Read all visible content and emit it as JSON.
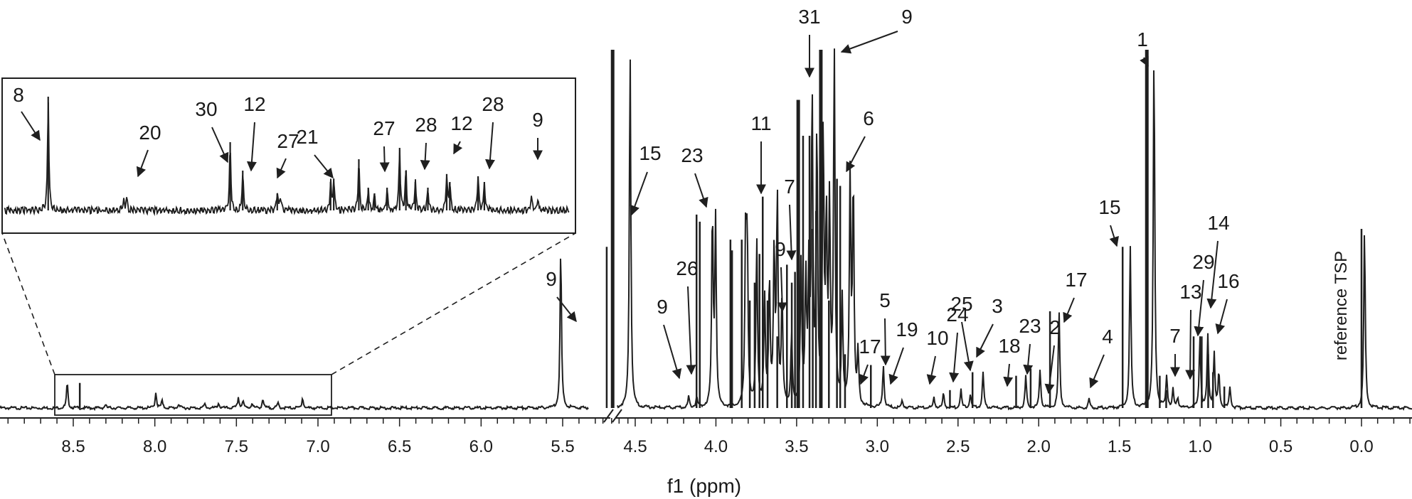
{
  "chart_data": {
    "type": "line",
    "xlabel": "f1 (ppm)",
    "reversed_x_axis": true,
    "axis_break": [
      4.7,
      5.2
    ],
    "tick_labels": [
      "8.5",
      "8.0",
      "7.5",
      "7.0",
      "6.5",
      "6.0",
      "5.5",
      "4.5",
      "4.0",
      "3.5",
      "3.0",
      "2.5",
      "2.0",
      "1.5",
      "1.0",
      "0.5",
      "0.0"
    ],
    "reference_label": "reference TSP",
    "colors": {
      "trace": "#1f1f1f",
      "text": "#1a1a1a"
    },
    "series": [
      {
        "name": "",
        "peaks": [
          {
            "x": 8.46,
            "y": 0.07
          },
          {
            "x": 8.21,
            "y": 0.01
          },
          {
            "x": 7.88,
            "y": 0.045
          },
          {
            "x": 7.84,
            "y": 0.02
          },
          {
            "x": 7.73,
            "y": 0.012
          },
          {
            "x": 7.56,
            "y": 0.012
          },
          {
            "x": 7.47,
            "y": 0.015
          },
          {
            "x": 7.34,
            "y": 0.03
          },
          {
            "x": 7.31,
            "y": 0.02
          },
          {
            "x": 7.25,
            "y": 0.015
          },
          {
            "x": 7.18,
            "y": 0.025
          },
          {
            "x": 7.08,
            "y": 0.015
          },
          {
            "x": 6.92,
            "y": 0.03
          },
          {
            "x": 5.23,
            "y": 0.45
          },
          {
            "x": 4.64,
            "y": 1.0
          },
          {
            "x": 4.27,
            "y": 0.03
          },
          {
            "x": 4.22,
            "y": 0.03
          },
          {
            "x": 4.12,
            "y": 0.54
          },
          {
            "x": 4.1,
            "y": 0.52
          },
          {
            "x": 3.91,
            "y": 0.47
          },
          {
            "x": 3.9,
            "y": 0.44
          },
          {
            "x": 3.84,
            "y": 0.47
          },
          {
            "x": 3.79,
            "y": 0.3
          },
          {
            "x": 3.76,
            "y": 0.35
          },
          {
            "x": 3.73,
            "y": 0.43
          },
          {
            "x": 3.71,
            "y": 0.59
          },
          {
            "x": 3.68,
            "y": 0.3
          },
          {
            "x": 3.62,
            "y": 0.2
          },
          {
            "x": 3.56,
            "y": 0.4
          },
          {
            "x": 3.53,
            "y": 0.35
          },
          {
            "x": 3.51,
            "y": 0.38
          },
          {
            "x": 3.49,
            "y": 0.86
          },
          {
            "x": 3.46,
            "y": 0.76
          },
          {
            "x": 3.42,
            "y": 0.76
          },
          {
            "x": 3.4,
            "y": 0.5
          },
          {
            "x": 3.38,
            "y": 0.55
          },
          {
            "x": 3.35,
            "y": 1.0
          },
          {
            "x": 3.3,
            "y": 0.3
          },
          {
            "x": 3.25,
            "y": 0.64
          },
          {
            "x": 3.23,
            "y": 0.62
          },
          {
            "x": 3.2,
            "y": 0.15
          },
          {
            "x": 3.04,
            "y": 0.12
          },
          {
            "x": 2.92,
            "y": 0.02
          },
          {
            "x": 2.72,
            "y": 0.03
          },
          {
            "x": 2.66,
            "y": 0.04
          },
          {
            "x": 2.55,
            "y": 0.05
          },
          {
            "x": 2.49,
            "y": 0.04
          },
          {
            "x": 2.41,
            "y": 0.1
          },
          {
            "x": 2.14,
            "y": 0.09
          },
          {
            "x": 2.05,
            "y": 0.11
          },
          {
            "x": 1.93,
            "y": 0.27
          },
          {
            "x": 1.74,
            "y": 0.025
          },
          {
            "x": 1.48,
            "y": 0.45
          },
          {
            "x": 1.33,
            "y": 1.0
          },
          {
            "x": 1.25,
            "y": 0.09
          },
          {
            "x": 1.21,
            "y": 0.05
          },
          {
            "x": 1.18,
            "y": 0.03
          },
          {
            "x": 1.04,
            "y": 0.2
          },
          {
            "x": 0.99,
            "y": 0.2
          },
          {
            "x": 0.95,
            "y": 0.15
          },
          {
            "x": 0.92,
            "y": 0.1
          },
          {
            "x": 0.85,
            "y": 0.06
          },
          {
            "x": 0.0,
            "y": 0.5
          }
        ]
      }
    ],
    "inset": {
      "x_range": [
        8.6,
        6.8
      ],
      "peaks": [
        {
          "x": 8.46,
          "y": 1.0
        },
        {
          "x": 8.22,
          "y": 0.1
        },
        {
          "x": 8.21,
          "y": 0.12
        },
        {
          "x": 7.88,
          "y": 0.6
        },
        {
          "x": 7.84,
          "y": 0.35
        },
        {
          "x": 7.73,
          "y": 0.15
        },
        {
          "x": 7.72,
          "y": 0.12
        },
        {
          "x": 7.56,
          "y": 0.25
        },
        {
          "x": 7.55,
          "y": 0.28
        },
        {
          "x": 7.47,
          "y": 0.45
        },
        {
          "x": 7.44,
          "y": 0.2
        },
        {
          "x": 7.42,
          "y": 0.15
        },
        {
          "x": 7.38,
          "y": 0.2
        },
        {
          "x": 7.34,
          "y": 0.55
        },
        {
          "x": 7.32,
          "y": 0.35
        },
        {
          "x": 7.29,
          "y": 0.25
        },
        {
          "x": 7.25,
          "y": 0.2
        },
        {
          "x": 7.19,
          "y": 0.32
        },
        {
          "x": 7.18,
          "y": 0.25
        },
        {
          "x": 7.09,
          "y": 0.3
        },
        {
          "x": 7.07,
          "y": 0.25
        },
        {
          "x": 6.92,
          "y": 0.12
        },
        {
          "x": 6.9,
          "y": 0.1
        }
      ]
    },
    "annotations": [
      {
        "text": "8",
        "x": 8.6
      },
      {
        "text": "20",
        "x": 8.4
      },
      {
        "text": "30",
        "x": 8.0
      },
      {
        "text": "12",
        "x": 7.95
      },
      {
        "text": "27",
        "x": 7.6
      },
      {
        "text": "21",
        "x": 7.3
      },
      {
        "text": "27",
        "x": 7.15
      },
      {
        "text": "28",
        "x": 7.08
      },
      {
        "text": "12",
        "x": 6.95
      },
      {
        "text": "28",
        "x": 6.85
      },
      {
        "text": "9",
        "x": 5.23
      },
      {
        "text": "9",
        "x": 4.64
      },
      {
        "text": "15",
        "x": 4.12
      },
      {
        "text": "23",
        "x": 4.22
      },
      {
        "text": "26",
        "x": 4.27
      },
      {
        "text": "9",
        "x": 3.74
      },
      {
        "text": "11",
        "x": 3.6
      },
      {
        "text": "7",
        "x": 3.65
      },
      {
        "text": "9",
        "x": 3.47
      },
      {
        "text": "31",
        "x": 3.35
      },
      {
        "text": "9",
        "x": 3.25
      },
      {
        "text": "6",
        "x": 3.0
      },
      {
        "text": "5",
        "x": 3.15
      },
      {
        "text": "17",
        "x": 2.95
      },
      {
        "text": "19",
        "x": 2.66
      },
      {
        "text": "10",
        "x": 2.56
      },
      {
        "text": "24",
        "x": 2.49
      },
      {
        "text": "25",
        "x": 2.41
      },
      {
        "text": "3",
        "x": 2.22
      },
      {
        "text": "18",
        "x": 2.12
      },
      {
        "text": "23",
        "x": 1.97
      },
      {
        "text": "2",
        "x": 1.9
      },
      {
        "text": "17",
        "x": 1.74
      },
      {
        "text": "4",
        "x": 1.5
      },
      {
        "text": "15",
        "x": 1.33
      },
      {
        "text": "1",
        "x": 1.2
      },
      {
        "text": "7",
        "x": 1.11
      },
      {
        "text": "13",
        "x": 1.04
      },
      {
        "text": "29",
        "x": 0.99
      },
      {
        "text": "14",
        "x": 0.95
      },
      {
        "text": "16",
        "x": 0.92
      }
    ]
  }
}
